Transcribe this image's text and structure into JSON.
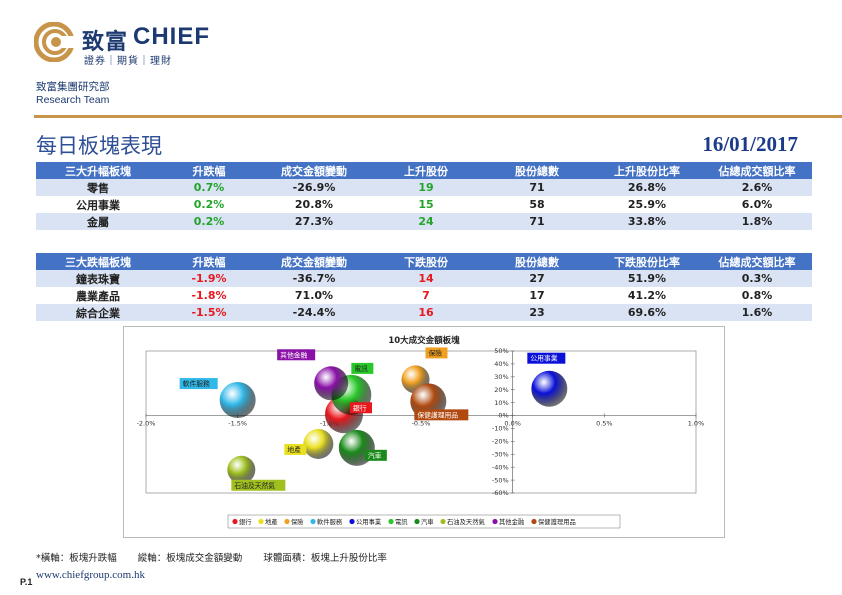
{
  "header": {
    "brand_cn": "致富",
    "brand_en": "CHIEF",
    "brand_sub": "證券｜期貨｜理財",
    "dept_cn": "致富集團研究部",
    "dept_en": "Research Team"
  },
  "page": {
    "title": "每日板塊表現",
    "date": "16/01/2017"
  },
  "gainers": {
    "headers": [
      "三大升幅板塊",
      "升跌幅",
      "成交金額變動",
      "上升股份",
      "股份總數",
      "上升股份比率",
      "佔總成交額比率"
    ],
    "rows": [
      [
        "零售",
        "0.7%",
        "-26.9%",
        "19",
        "71",
        "26.8%",
        "2.6%"
      ],
      [
        "公用事業",
        "0.2%",
        "20.8%",
        "15",
        "58",
        "25.9%",
        "6.0%"
      ],
      [
        "金屬",
        "0.2%",
        "27.3%",
        "24",
        "71",
        "33.8%",
        "1.8%"
      ]
    ]
  },
  "losers": {
    "headers": [
      "三大跌幅板塊",
      "升跌幅",
      "成交金額變動",
      "下跌股份",
      "股份總數",
      "下跌股份比率",
      "佔總成交額比率"
    ],
    "rows": [
      [
        "鐘表珠寶",
        "-1.9%",
        "-36.7%",
        "14",
        "27",
        "51.9%",
        "0.3%"
      ],
      [
        "農業產品",
        "-1.8%",
        "71.0%",
        "7",
        "17",
        "41.2%",
        "0.8%"
      ],
      [
        "綜合企業",
        "-1.5%",
        "-24.4%",
        "16",
        "23",
        "69.6%",
        "1.6%"
      ]
    ]
  },
  "chart_data": {
    "type": "scatter",
    "title": "10大成交金額板塊",
    "xlim": [
      -2.0,
      1.0
    ],
    "ylim": [
      -60,
      50
    ],
    "x_ticks": [
      "-2.0%",
      "-1.5%",
      "-1.0%",
      "-0.5%",
      "0.0%",
      "0.5%",
      "1.0%"
    ],
    "x_tick_values": [
      -2.0,
      -1.5,
      -1.0,
      -0.5,
      0.0,
      0.5,
      1.0
    ],
    "y_ticks": [
      "50%",
      "40%",
      "30%",
      "20%",
      "10%",
      "0%",
      "-10%",
      "-20%",
      "-30%",
      "-40%",
      "-50%",
      "-60%"
    ],
    "y_tick_values": [
      50,
      40,
      30,
      20,
      10,
      0,
      -10,
      -20,
      -30,
      -40,
      -50,
      -60
    ],
    "xlabel": "板塊升跌幅",
    "ylabel": "板塊成交金額變動",
    "size_meaning": "板塊上升股份比率",
    "legend_position": "bottom",
    "series": [
      {
        "name": "銀行",
        "x": -0.92,
        "y": 1,
        "size": 38,
        "color": "#e8181e"
      },
      {
        "name": "地產",
        "x": -1.06,
        "y": -22,
        "size": 30,
        "color": "#e8e020"
      },
      {
        "name": "保險",
        "x": -0.53,
        "y": 28,
        "size": 28,
        "color": "#f0a020"
      },
      {
        "name": "軟件服務",
        "x": -1.5,
        "y": 12,
        "size": 36,
        "color": "#30b8e8"
      },
      {
        "name": "公用事業",
        "x": 0.2,
        "y": 20.8,
        "size": 36,
        "color": "#0a10d8"
      },
      {
        "name": "電訊",
        "x": -0.88,
        "y": 16,
        "size": 40,
        "color": "#28c828"
      },
      {
        "name": "汽車",
        "x": -0.85,
        "y": -25,
        "size": 36,
        "color": "#1a8a1a"
      },
      {
        "name": "石油及天然氣",
        "x": -1.48,
        "y": -42,
        "size": 28,
        "color": "#a0c020"
      },
      {
        "name": "其他金融",
        "x": -0.99,
        "y": 25,
        "size": 34,
        "color": "#8a10a8"
      },
      {
        "name": "保健護理用品",
        "x": -0.46,
        "y": 11,
        "size": 36,
        "color": "#b04a10"
      }
    ]
  },
  "footnote": {
    "x_desc": "*橫軸：板塊升跌幅",
    "y_desc": "縱軸：板塊成交金額變動",
    "size_desc": "球體面積：板塊上升股份比率"
  },
  "footer": {
    "page_no": "P.1",
    "url": "www.chiefgroup.com.hk"
  }
}
